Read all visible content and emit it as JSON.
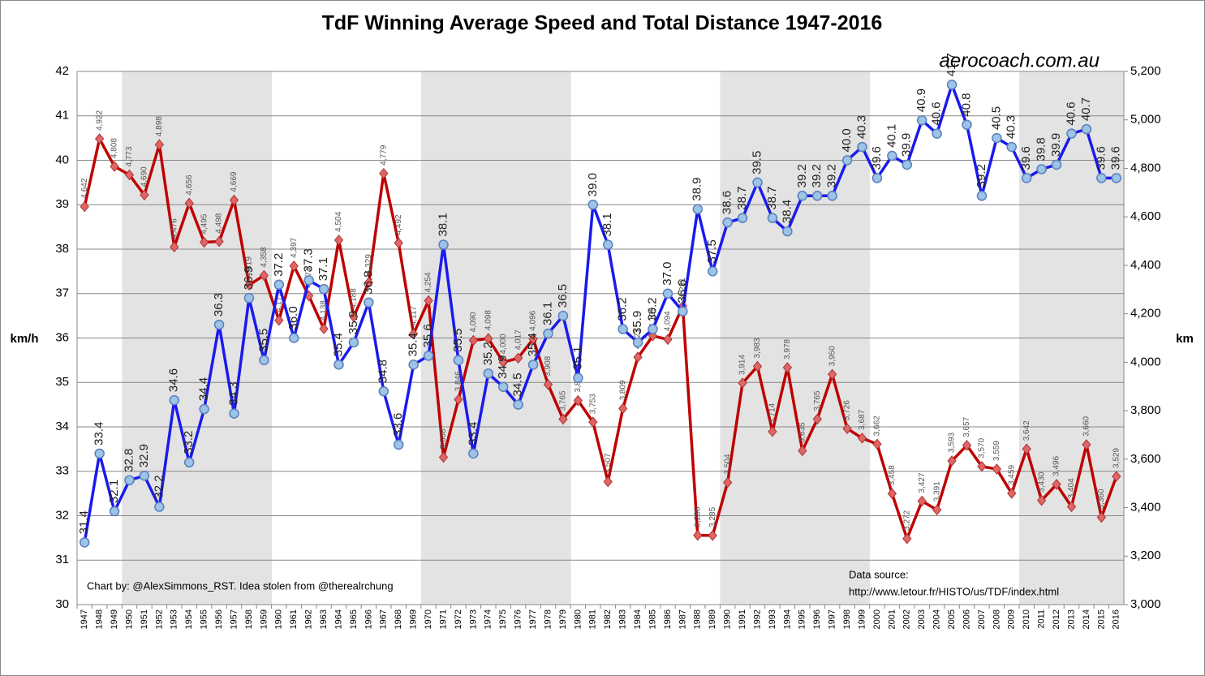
{
  "chart_data": {
    "type": "line",
    "title": "TdF Winning Average Speed and Total Distance 1947-2016",
    "y_label": "km/h",
    "y2_label": "km",
    "annotations": [
      "aerocoach.com.au",
      "Chart by: @AlexSimmons_RST. Idea stolen from @therealrchung",
      "Data source:",
      "http://www.letour.fr/HISTO/us/TDF/index.html"
    ],
    "categories": [
      "1947",
      "1948",
      "1949",
      "1950",
      "1951",
      "1952",
      "1953",
      "1954",
      "1955",
      "1956",
      "1957",
      "1958",
      "1959",
      "1960",
      "1961",
      "1962",
      "1963",
      "1964",
      "1965",
      "1966",
      "1967",
      "1968",
      "1969",
      "1970",
      "1971",
      "1972",
      "1973",
      "1974",
      "1975",
      "1976",
      "1977",
      "1978",
      "1979",
      "1980",
      "1981",
      "1982",
      "1983",
      "1984",
      "1985",
      "1986",
      "1987",
      "1988",
      "1989",
      "1990",
      "1991",
      "1992",
      "1993",
      "1994",
      "1995",
      "1996",
      "1997",
      "1998",
      "1999",
      "2000",
      "2001",
      "2002",
      "2003",
      "2004",
      "2005",
      "2006",
      "2007",
      "2008",
      "2009",
      "2010",
      "2011",
      "2012",
      "2013",
      "2014",
      "2015",
      "2016"
    ],
    "ylim": [
      30,
      42
    ],
    "yticks": [
      30,
      31,
      32,
      33,
      34,
      35,
      36,
      37,
      38,
      39,
      40,
      41,
      42
    ],
    "y2lim": [
      3000,
      5200
    ],
    "y2ticks": [
      {
        "value": 3000,
        "label": "3,000"
      },
      {
        "value": 3200,
        "label": "3,200"
      },
      {
        "value": 3400,
        "label": "3,400"
      },
      {
        "value": 3600,
        "label": "3,600"
      },
      {
        "value": 3800,
        "label": "3,800"
      },
      {
        "value": 4000,
        "label": "4,000"
      },
      {
        "value": 4200,
        "label": "4,200"
      },
      {
        "value": 4400,
        "label": "4,400"
      },
      {
        "value": 4600,
        "label": "4,600"
      },
      {
        "value": 4800,
        "label": "4,800"
      },
      {
        "value": 5000,
        "label": "5,000"
      },
      {
        "value": 5200,
        "label": "5,200"
      }
    ],
    "grid": true,
    "series": [
      {
        "name": "Average Speed",
        "color": "#1a1aee",
        "marker_color": "#9dc3e6",
        "values": [
          31.4,
          33.4,
          32.1,
          32.8,
          32.9,
          32.2,
          34.6,
          33.2,
          34.4,
          36.3,
          34.3,
          36.9,
          35.5,
          37.2,
          36.0,
          37.3,
          37.1,
          35.4,
          35.9,
          36.8,
          34.8,
          33.6,
          35.4,
          35.6,
          38.1,
          35.5,
          33.4,
          35.2,
          34.9,
          34.5,
          35.4,
          36.1,
          36.5,
          35.1,
          39.0,
          38.1,
          36.2,
          35.9,
          36.2,
          37.0,
          36.6,
          38.9,
          37.5,
          38.6,
          38.7,
          39.5,
          38.7,
          38.4,
          39.2,
          39.2,
          39.2,
          40.0,
          40.3,
          39.6,
          40.1,
          39.9,
          40.9,
          40.6,
          41.7,
          40.8,
          39.2,
          40.5,
          40.3,
          39.6,
          39.8,
          39.9,
          40.6,
          40.7,
          39.6,
          39.6
        ],
        "value_labels": [
          "31.4",
          "33.4",
          "32.1",
          "32.8",
          "32.9",
          "32.2",
          "34.6",
          "33.2",
          "34.4",
          "36.3",
          "34.3",
          "36.9",
          "35.5",
          "37.2",
          "36.0",
          "37.3",
          "37.1",
          "35.4",
          "35.9",
          "36.8",
          "34.8",
          "33.6",
          "35.4",
          "35.6",
          "38.1",
          "35.5",
          "33.4",
          "35.2",
          "34.9",
          "34.5",
          "35.4",
          "36.1",
          "36.5",
          "35.1",
          "39.0",
          "38.1",
          "36.2",
          "35.9",
          "36.2",
          "37.0",
          "36.6",
          "38.9",
          "37.5",
          "38.6",
          "38.7",
          "39.5",
          "38.7",
          "38.4",
          "39.2",
          "39.2",
          "39.2",
          "40.0",
          "40.3",
          "39.6",
          "40.1",
          "39.9",
          "40.9",
          "40.6",
          "41.7",
          "40.8",
          "39.2",
          "40.5",
          "40.3",
          "39.6",
          "39.8",
          "39.9",
          "40.6",
          "40.7",
          "39.6",
          "39.6"
        ]
      },
      {
        "name": "Total Distance",
        "color": "#c00000",
        "marker_color": "#e06666",
        "axis": "y2",
        "values": [
          4642,
          4922,
          4808,
          4773,
          4690,
          4898,
          4476,
          4656,
          4495,
          4498,
          4669,
          4319,
          4358,
          4173,
          4397,
          4274,
          4138,
          4504,
          4188,
          4329,
          4779,
          4492,
          4117,
          4254,
          3608,
          3846,
          4090,
          4098,
          4000,
          4017,
          4096,
          3908,
          3765,
          3842,
          3753,
          3507,
          3809,
          4021,
          4109,
          4094,
          4231,
          3286,
          3285,
          3504,
          3914,
          3983,
          3714,
          3978,
          3635,
          3765,
          3950,
          3726,
          3687,
          3662,
          3458,
          3272,
          3427,
          3391,
          3593,
          3657,
          3570,
          3559,
          3459,
          3642,
          3430,
          3496,
          3404,
          3660,
          3360,
          3529
        ],
        "value_labels": [
          "4,642",
          "4,922",
          "4,808",
          "4,773",
          "4,690",
          "4,898",
          "4,476",
          "4,656",
          "4,495",
          "4,498",
          "4,669",
          "4,319",
          "4,358",
          "4,173",
          "4,397",
          "4,274",
          "4,138",
          "4,504",
          "4,188",
          "4,329",
          "4,779",
          "4,492",
          "4,117",
          "4,254",
          "3,608",
          "3,846",
          "4,090",
          "4,098",
          "4,000",
          "4,017",
          "4,096",
          "3,908",
          "3,765",
          "3,842",
          "3,753",
          "3,507",
          "3,809",
          "4,021",
          "4,109",
          "4,094",
          "4,231",
          "3,286",
          "3,285",
          "3,504",
          "3,914",
          "3,983",
          "3,714",
          "3,978",
          "3,635",
          "3,765",
          "3,950",
          "3,726",
          "3,687",
          "3,662",
          "3,458",
          "3,272",
          "3,427",
          "3,391",
          "3,593",
          "3,657",
          "3,570",
          "3,559",
          "3,459",
          "3,642",
          "3,430",
          "3,496",
          "3,404",
          "3,660",
          "3,360",
          "3,529"
        ]
      }
    ]
  }
}
